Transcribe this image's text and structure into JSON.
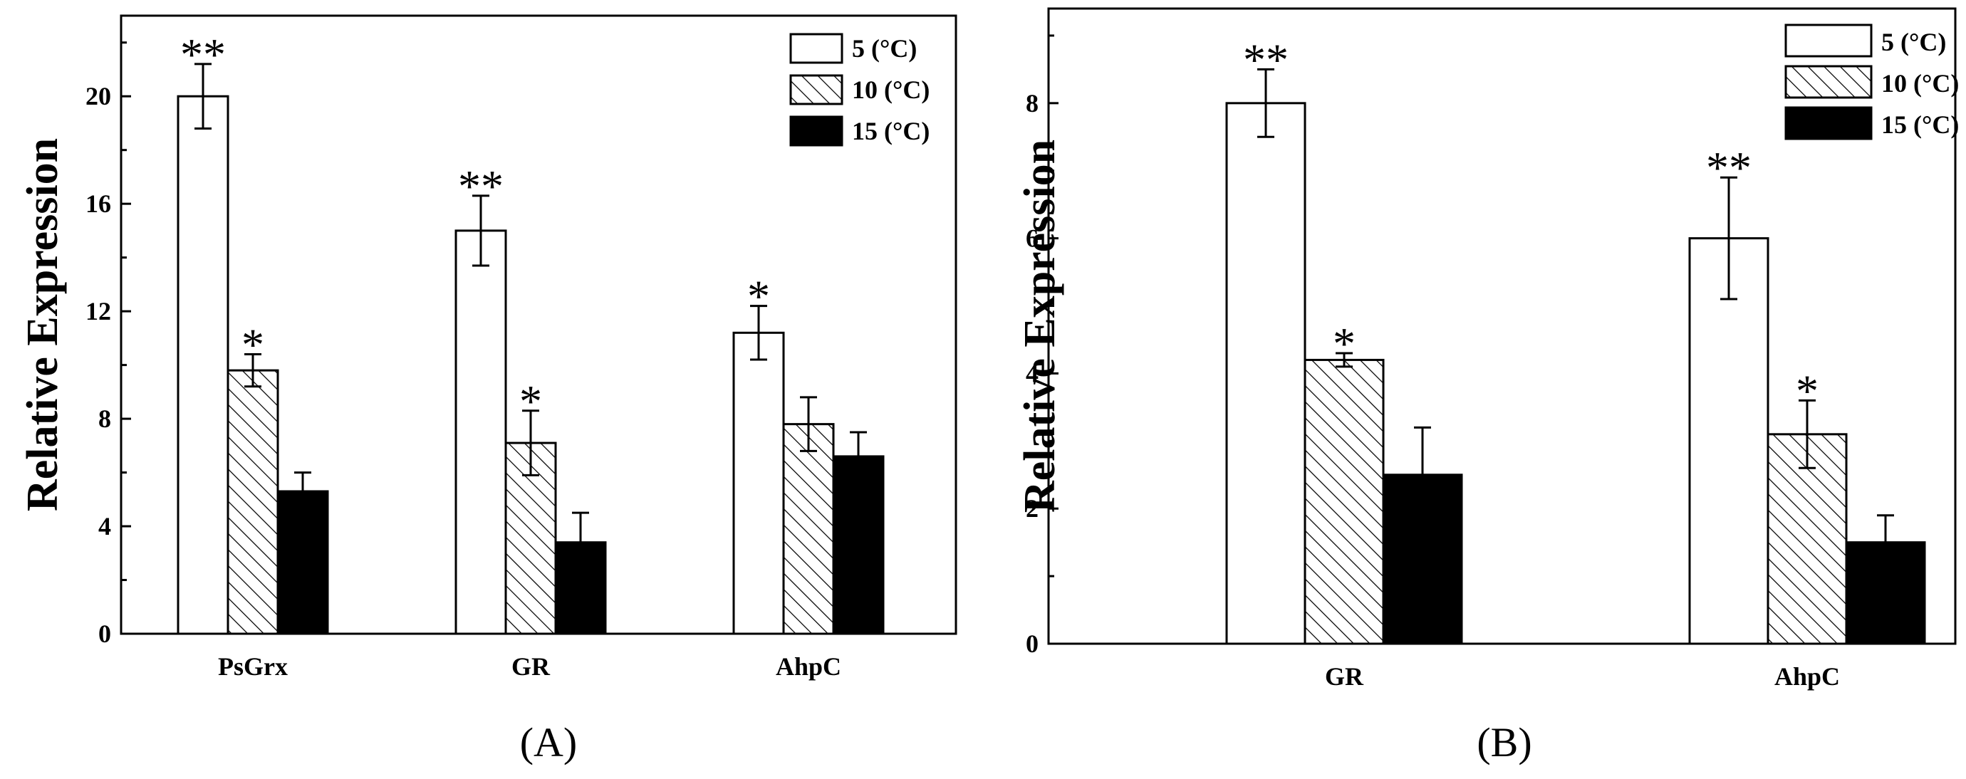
{
  "chart_data": [
    {
      "panel_label": "(A)",
      "type": "bar",
      "ylabel": "Relative Expression",
      "ylim": [
        0,
        23
      ],
      "yticks": [
        0,
        4,
        8,
        12,
        16,
        20
      ],
      "categories": [
        "PsGrx",
        "GR",
        "AhpC"
      ],
      "legend_position": "top-right",
      "series": [
        {
          "name": "5  (°C)",
          "fill": "white",
          "values": [
            20.0,
            15.0,
            11.2
          ],
          "errors": [
            1.2,
            1.3,
            1.0
          ],
          "sig": [
            "**",
            "**",
            "*"
          ]
        },
        {
          "name": "10 (°C)",
          "fill": "hatch",
          "values": [
            9.8,
            7.1,
            7.8
          ],
          "errors": [
            0.6,
            1.2,
            1.0
          ],
          "sig": [
            "*",
            "*",
            ""
          ]
        },
        {
          "name": "15 (°C)",
          "fill": "black",
          "values": [
            5.3,
            3.4,
            6.6
          ],
          "errors": [
            0.7,
            1.1,
            0.9
          ],
          "sig": [
            "",
            "",
            ""
          ]
        }
      ]
    },
    {
      "panel_label": "(B)",
      "type": "bar",
      "ylabel": "Relative Expression",
      "ylim": [
        0,
        9.4
      ],
      "yticks": [
        0,
        2,
        4,
        6,
        8
      ],
      "categories": [
        "GR",
        "AhpC"
      ],
      "legend_position": "top-right",
      "series": [
        {
          "name": "5  (°C)",
          "fill": "white",
          "values": [
            8.0,
            6.0
          ],
          "errors": [
            0.5,
            0.9
          ],
          "sig": [
            "**",
            "**"
          ]
        },
        {
          "name": "10 (°C)",
          "fill": "hatch",
          "values": [
            4.2,
            3.1
          ],
          "errors": [
            0.1,
            0.5
          ],
          "sig": [
            "*",
            "*"
          ]
        },
        {
          "name": "15 (°C)",
          "fill": "black",
          "values": [
            2.5,
            1.5
          ],
          "errors": [
            0.7,
            0.4
          ],
          "sig": [
            "",
            ""
          ]
        }
      ]
    }
  ]
}
